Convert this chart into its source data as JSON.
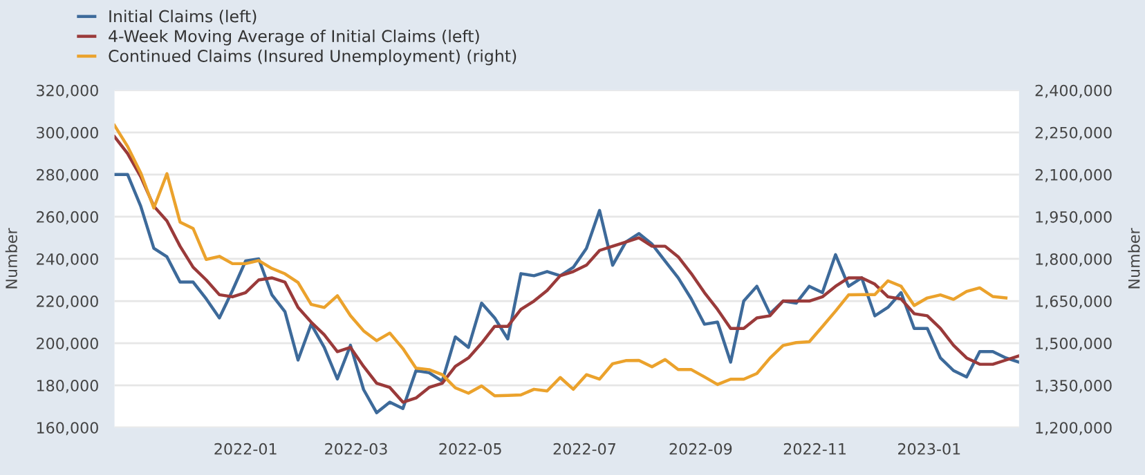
{
  "chart_data": {
    "type": "line",
    "x": [
      "2021-10-23",
      "2021-10-30",
      "2021-11-06",
      "2021-11-13",
      "2021-11-20",
      "2021-11-27",
      "2021-12-04",
      "2021-12-11",
      "2021-12-18",
      "2021-12-25",
      "2022-01-01",
      "2022-01-08",
      "2022-01-15",
      "2022-01-22",
      "2022-01-29",
      "2022-02-05",
      "2022-02-12",
      "2022-02-19",
      "2022-02-26",
      "2022-03-05",
      "2022-03-12",
      "2022-03-19",
      "2022-03-26",
      "2022-04-02",
      "2022-04-09",
      "2022-04-16",
      "2022-04-23",
      "2022-04-30",
      "2022-05-07",
      "2022-05-14",
      "2022-05-21",
      "2022-05-28",
      "2022-06-04",
      "2022-06-11",
      "2022-06-18",
      "2022-06-25",
      "2022-07-02",
      "2022-07-09",
      "2022-07-16",
      "2022-07-23",
      "2022-07-30",
      "2022-08-06",
      "2022-08-13",
      "2022-08-20",
      "2022-08-27",
      "2022-09-03",
      "2022-09-10",
      "2022-09-17",
      "2022-09-24",
      "2022-10-01",
      "2022-10-08",
      "2022-10-15",
      "2022-10-22",
      "2022-10-29",
      "2022-11-05",
      "2022-11-12",
      "2022-11-19",
      "2022-11-26",
      "2022-12-03",
      "2022-12-10",
      "2022-12-17",
      "2022-12-24",
      "2022-12-31",
      "2023-01-07",
      "2023-01-14",
      "2023-01-21",
      "2023-01-28",
      "2023-02-04",
      "2023-02-11",
      "2023-02-18"
    ],
    "series": [
      {
        "name": "Initial Claims (left)",
        "color": "#3d6a9a",
        "values": [
          280000,
          280000,
          265000,
          245000,
          241000,
          229000,
          229000,
          221000,
          212000,
          225000,
          239000,
          240000,
          223000,
          215000,
          192000,
          209000,
          198000,
          183000,
          199000,
          178000,
          167000,
          172000,
          169000,
          187000,
          186000,
          182000,
          203000,
          198000,
          219000,
          212000,
          202000,
          233000,
          232000,
          234000,
          232000,
          236000,
          245000,
          263000,
          237000,
          248000,
          252000,
          247000,
          239000,
          231000,
          221000,
          209000,
          210000,
          191000,
          220000,
          227000,
          214000,
          220000,
          219000,
          227000,
          224000,
          242000,
          227000,
          231000,
          213000,
          217000,
          224000,
          207000,
          207000,
          193000,
          187000,
          184000,
          196000,
          196000,
          193000,
          191000
        ]
      },
      {
        "name": "4-Week Moving Average of Initial Claims (left)",
        "color": "#9a3a3a",
        "values": [
          298000,
          290000,
          279000,
          265000,
          258000,
          246000,
          236000,
          230000,
          223000,
          222000,
          224000,
          230000,
          231000,
          229000,
          217000,
          210000,
          204000,
          196000,
          198000,
          189000,
          181000,
          179000,
          172000,
          174000,
          179000,
          181000,
          189000,
          193000,
          200000,
          208000,
          208000,
          216000,
          220000,
          225000,
          232000,
          234000,
          237000,
          244000,
          246000,
          248000,
          250000,
          246000,
          246000,
          241000,
          233000,
          224000,
          216000,
          207000,
          207000,
          212000,
          213000,
          220000,
          220000,
          220000,
          222000,
          227000,
          231000,
          231000,
          228000,
          222000,
          221000,
          214000,
          213000,
          207000,
          199000,
          193000,
          190000,
          190000,
          192000,
          194000
        ]
      },
      {
        "name": "Continued Claims (Insured Unemployment) (right)",
        "color": "#eba22c",
        "axis": "y2",
        "values": [
          2275000,
          2200000,
          2106000,
          1981000,
          2103000,
          1931000,
          1908000,
          1798000,
          1809000,
          1783000,
          1783000,
          1794000,
          1766000,
          1747000,
          1716000,
          1638000,
          1627000,
          1669000,
          1598000,
          1544000,
          1509000,
          1536000,
          1481000,
          1411000,
          1406000,
          1388000,
          1341000,
          1322000,
          1348000,
          1313000,
          1314000,
          1316000,
          1336000,
          1330000,
          1378000,
          1336000,
          1388000,
          1372000,
          1427000,
          1438000,
          1439000,
          1416000,
          1442000,
          1406000,
          1406000,
          1380000,
          1353000,
          1372000,
          1372000,
          1392000,
          1447000,
          1492000,
          1502000,
          1505000,
          1559000,
          1614000,
          1672000,
          1673000,
          1673000,
          1722000,
          1703000,
          1634000,
          1661000,
          1672000,
          1656000,
          1684000,
          1697000,
          1666000,
          1661000,
          null
        ]
      }
    ],
    "ylabel": "Number",
    "y2label": "Number",
    "xlim": [
      "2021-10-23",
      "2023-02-18"
    ],
    "xticks": [
      {
        "value": "2022-01-01",
        "label": "2022-01"
      },
      {
        "value": "2022-03-01",
        "label": "2022-03"
      },
      {
        "value": "2022-05-01",
        "label": "2022-05"
      },
      {
        "value": "2022-07-01",
        "label": "2022-07"
      },
      {
        "value": "2022-09-01",
        "label": "2022-09"
      },
      {
        "value": "2022-11-01",
        "label": "2022-11"
      },
      {
        "value": "2023-01-01",
        "label": "2023-01"
      }
    ],
    "ylim": [
      160000,
      320000
    ],
    "yticks": [
      {
        "value": 160000,
        "label": "160,000"
      },
      {
        "value": 180000,
        "label": "180,000"
      },
      {
        "value": 200000,
        "label": "200,000"
      },
      {
        "value": 220000,
        "label": "220,000"
      },
      {
        "value": 240000,
        "label": "240,000"
      },
      {
        "value": 260000,
        "label": "260,000"
      },
      {
        "value": 280000,
        "label": "280,000"
      },
      {
        "value": 300000,
        "label": "300,000"
      },
      {
        "value": 320000,
        "label": "320,000"
      }
    ],
    "y2lim": [
      1200000,
      2400000
    ],
    "y2ticks": [
      {
        "value": 1200000,
        "label": "1,200,000"
      },
      {
        "value": 1350000,
        "label": "1,350,000"
      },
      {
        "value": 1500000,
        "label": "1,500,000"
      },
      {
        "value": 1650000,
        "label": "1,650,000"
      },
      {
        "value": 1800000,
        "label": "1,800,000"
      },
      {
        "value": 1950000,
        "label": "1,950,000"
      },
      {
        "value": 2100000,
        "label": "2,100,000"
      },
      {
        "value": 2250000,
        "label": "2,250,000"
      },
      {
        "value": 2400000,
        "label": "2,400,000"
      }
    ],
    "grid": "y",
    "legend": "top left",
    "marker": "none",
    "line_style": "solid"
  }
}
